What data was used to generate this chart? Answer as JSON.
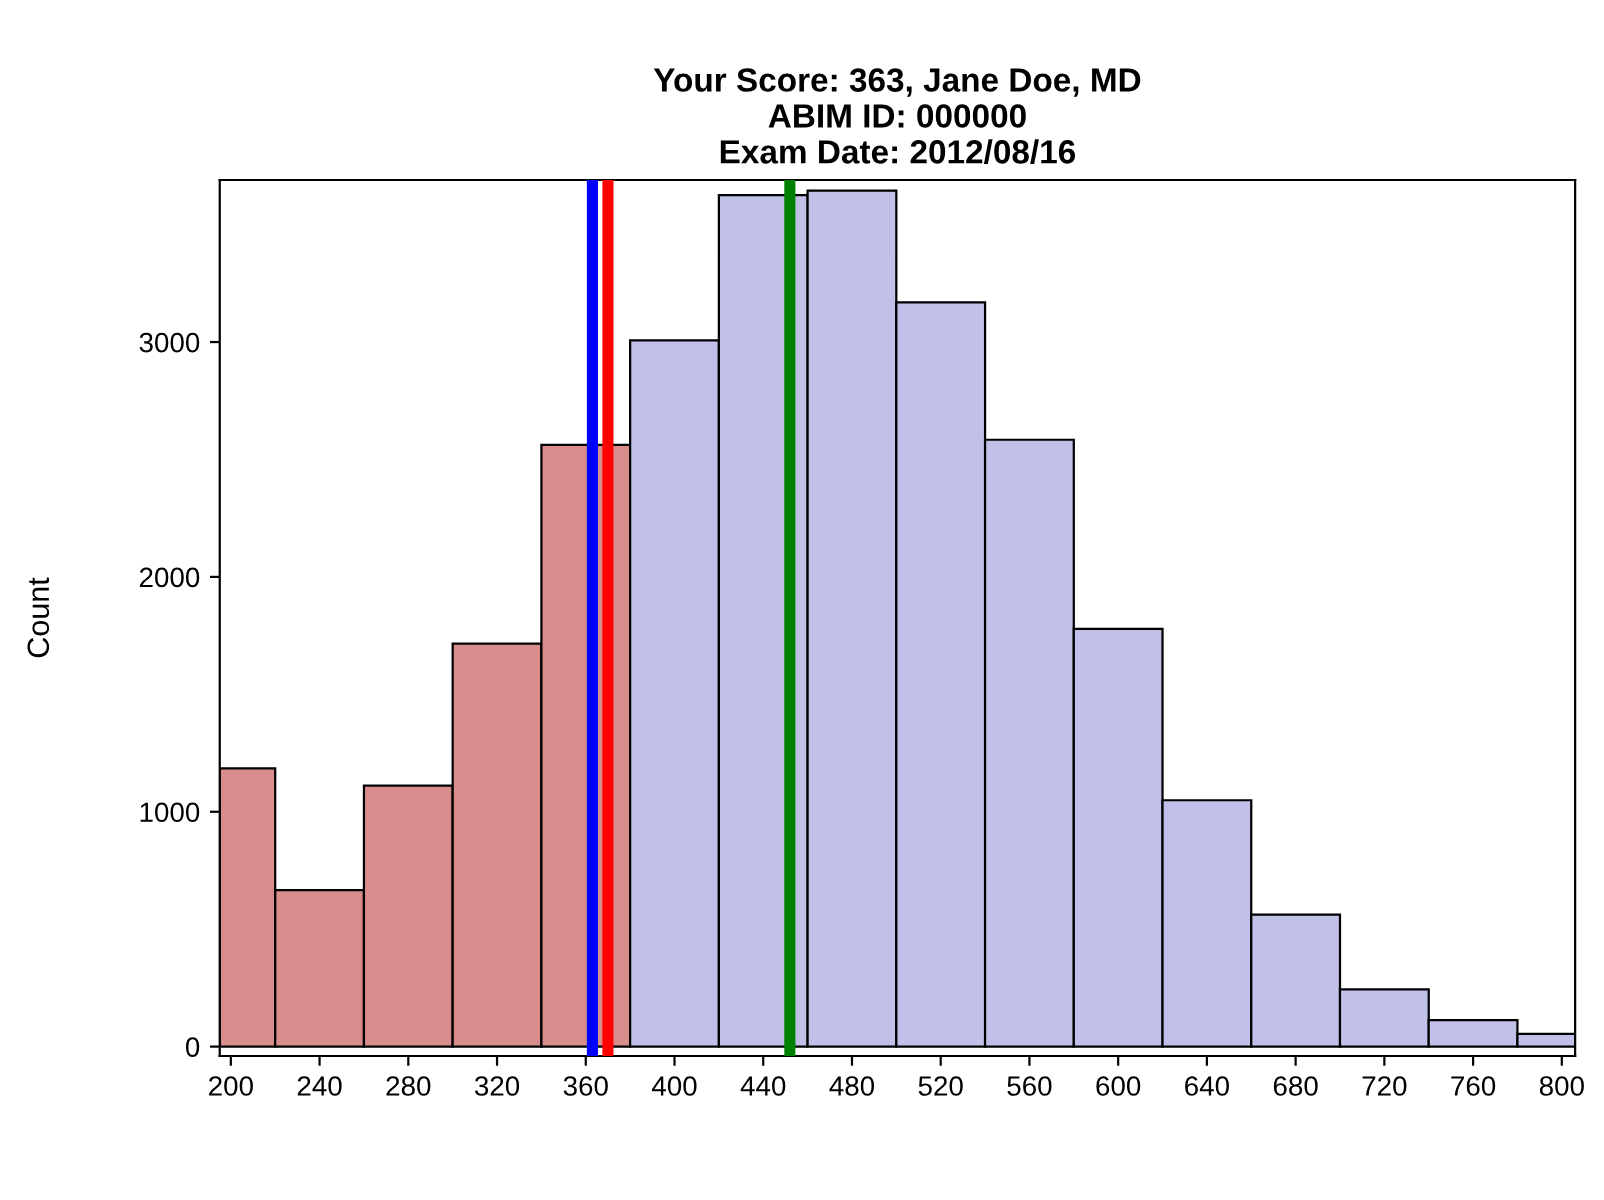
{
  "chart_data": {
    "type": "histogram",
    "title": "Your Score: 363, Jane Doe, MD\nABIM ID: 000000\nExam Date: 2012/08/16",
    "ylabel": "Count",
    "bins": [
      195,
      220,
      260,
      300,
      340,
      380,
      420,
      460,
      500,
      540,
      580,
      620,
      660,
      700,
      740,
      780,
      806
    ],
    "values": [
      1185,
      666,
      1111,
      1716,
      2562,
      3007,
      3626,
      3645,
      3169,
      2584,
      1779,
      1049,
      562,
      244,
      113,
      54
    ],
    "colors": [
      "#d88c8c",
      "#d88c8c",
      "#d88c8c",
      "#d88c8c",
      "#d88c8c",
      "#c0c0e8",
      "#c0c0e8",
      "#c0c0e8",
      "#c0c0e8",
      "#c0c0e8",
      "#c0c0e8",
      "#c0c0e8",
      "#c0c0e8",
      "#c0c0e8",
      "#c0c0e8",
      "#c0c0e8"
    ],
    "xlim": [
      195,
      806
    ],
    "ylim": [
      -40,
      3690
    ],
    "xticks": [
      200,
      240,
      280,
      320,
      360,
      400,
      440,
      480,
      520,
      560,
      600,
      640,
      680,
      720,
      760,
      800
    ],
    "yticks": [
      0,
      1000,
      2000,
      3000
    ],
    "ref_lines": [
      {
        "axis": "x",
        "value": 363,
        "color": "#0000ff"
      },
      {
        "axis": "x",
        "value": 370,
        "color": "#ff0000"
      },
      {
        "axis": "x",
        "value": 452,
        "color": "#008000"
      }
    ],
    "grid": false
  }
}
